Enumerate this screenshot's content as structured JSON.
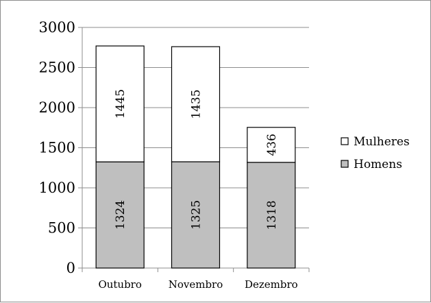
{
  "chart_data": {
    "type": "bar",
    "stacked": true,
    "categories": [
      "Outubro",
      "Novembro",
      "Dezembro"
    ],
    "series": [
      {
        "name": "Homens",
        "values": [
          1324,
          1325,
          1318
        ],
        "color": "#bfbfbf"
      },
      {
        "name": "Mulheres",
        "values": [
          1445,
          1435,
          436
        ],
        "color": "#ffffff"
      }
    ],
    "ylim": [
      0,
      3000
    ],
    "yticks": [
      0,
      500,
      1000,
      1500,
      2000,
      2500,
      3000
    ],
    "grid": true,
    "legend": "right",
    "legend_order": [
      "Mulheres",
      "Homens"
    ]
  }
}
